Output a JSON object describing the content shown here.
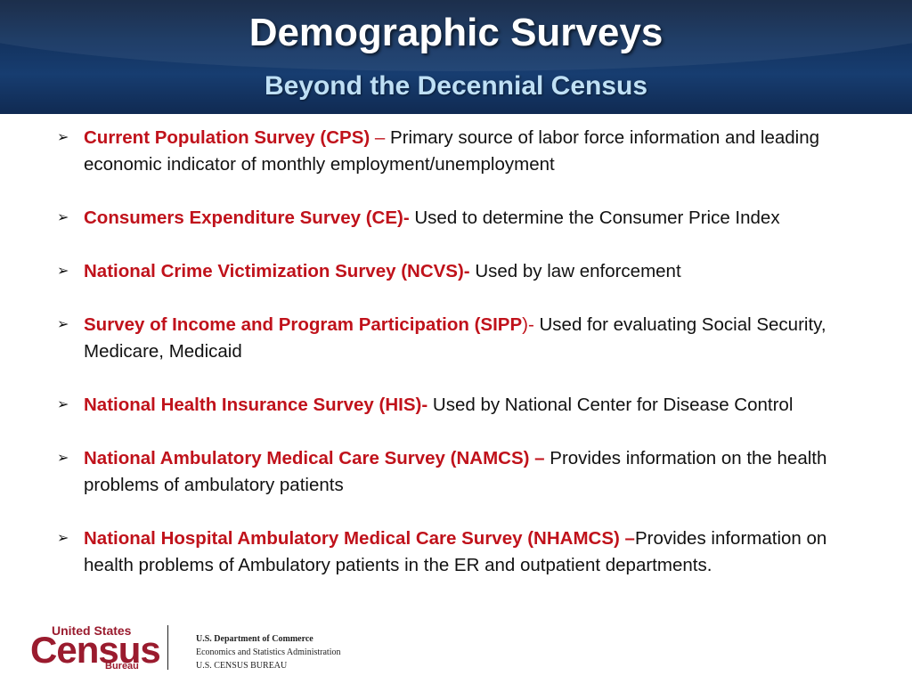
{
  "header": {
    "title": "Demographic Surveys",
    "subtitle": "Beyond the Decennial Census"
  },
  "bullets": [
    {
      "name": "Current Population Survey (CPS)",
      "sep": " – ",
      "text": "Primary source of labor force information and leading economic indicator of monthly employment/unemployment"
    },
    {
      "name": "Consumers Expenditure Survey (CE)-",
      "sep": " ",
      "text": "Used to determine the Consumer Price Index"
    },
    {
      "name": "National Crime Victimization Survey (NCVS)-",
      "sep": " ",
      "text": "Used by law enforcement"
    },
    {
      "name": "Survey of Income and Program Participation (SIPP",
      "sep": ")- ",
      "text": "Used for evaluating Social Security, Medicare, Medicaid"
    },
    {
      "name": "National Health Insurance Survey (HIS)-",
      "sep": " ",
      "text": "Used by National Center for Disease Control"
    },
    {
      "name": "National Ambulatory Medical Care Survey (NAMCS) –",
      "sep": " ",
      "text": "Provides information on the health problems of ambulatory patients"
    },
    {
      "name": "National Hospital Ambulatory Medical Care Survey  (NHAMCS) –",
      "sep": "",
      "text": "Provides information on  health problems of Ambulatory patients in the ER and outpatient departments."
    }
  ],
  "footer": {
    "logo": {
      "line1": "United States",
      "line2": "Census",
      "line3": "Bureau"
    },
    "agency": {
      "dept": "U.S. Department of Commerce",
      "admin": "Economics and Statistics Administration",
      "bureau": "U.S. CENSUS BUREAU"
    }
  },
  "colors": {
    "header_bg": "#13325e",
    "accent_red": "#c0121b",
    "subtitle": "#bfe0f5",
    "logo_red": "#9a1b2e"
  },
  "icons": {
    "bullet": "arrow-bullet-icon"
  }
}
